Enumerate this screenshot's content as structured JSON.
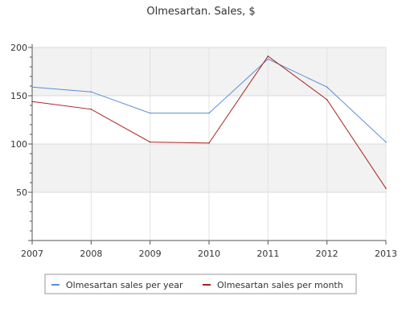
{
  "chart_data": {
    "type": "line",
    "title": "Olmesartan. Sales, $",
    "xlabel": "",
    "ylabel": "",
    "x": [
      "2007",
      "2008",
      "2009",
      "2010",
      "2011",
      "2012",
      "2013"
    ],
    "ylim": [
      0,
      200
    ],
    "yticks": [
      50,
      100,
      150,
      200
    ],
    "grid": true,
    "legend_position": "bottom",
    "series": [
      {
        "name": "Olmesartan sales per year",
        "color": "#5b8fd8",
        "values": [
          159,
          154,
          132,
          132,
          188,
          159,
          102
        ]
      },
      {
        "name": "Olmesartan sales per month",
        "color": "#aa2222",
        "values": [
          144,
          136,
          102,
          101,
          191,
          146,
          54
        ]
      }
    ]
  }
}
